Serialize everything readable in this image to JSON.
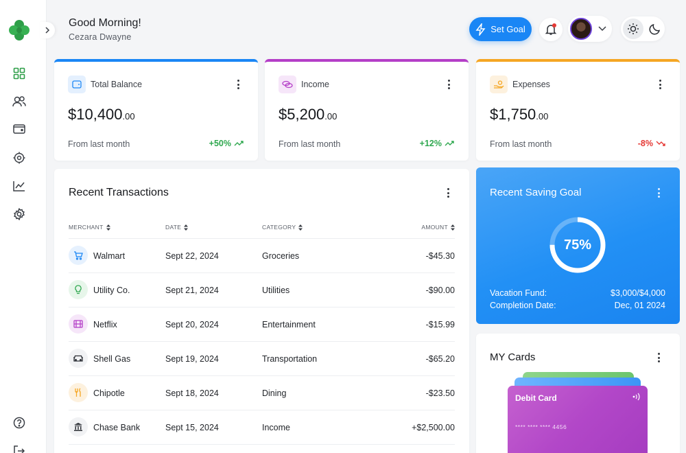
{
  "header": {
    "greeting": "Good Morning!",
    "username": "Cezara Dwayne",
    "set_goal_label": "Set Goal"
  },
  "sidebar": {
    "items": [
      {
        "icon": "dashboard-icon"
      },
      {
        "icon": "users-icon"
      },
      {
        "icon": "wallet-icon"
      },
      {
        "icon": "target-icon"
      },
      {
        "icon": "analytics-icon"
      },
      {
        "icon": "settings-icon"
      }
    ],
    "bottom": [
      {
        "icon": "help-icon"
      },
      {
        "icon": "logout-icon"
      }
    ]
  },
  "stats": [
    {
      "title": "Total Balance",
      "amount": "$10,400",
      "cents": ".00",
      "sub": "From last month",
      "change": "+50%",
      "trend": "up",
      "accent": "#1a86f5"
    },
    {
      "title": "Income",
      "amount": "$5,200",
      "cents": ".00",
      "sub": "From last month",
      "change": "+12%",
      "trend": "up",
      "accent": "#b43ec7"
    },
    {
      "title": "Expenses",
      "amount": "$1,750",
      "cents": ".00",
      "sub": "From last month",
      "change": "-8%",
      "trend": "down",
      "accent": "#f5a623"
    }
  ],
  "transactions": {
    "title": "Recent Transactions",
    "columns": [
      "MERCHANT",
      "DATE",
      "CATEGORY",
      "AMOUNT"
    ],
    "rows": [
      {
        "merchant": "Walmart",
        "date": "Sept 22, 2024",
        "category": "Groceries",
        "amount": "-$45.30"
      },
      {
        "merchant": "Utility Co.",
        "date": "Sept 21, 2024",
        "category": "Utilities",
        "amount": "-$90.00"
      },
      {
        "merchant": "Netflix",
        "date": "Sept 20, 2024",
        "category": "Entertainment",
        "amount": "-$15.99"
      },
      {
        "merchant": "Shell Gas",
        "date": "Sept 19, 2024",
        "category": "Transportation",
        "amount": "-$65.20"
      },
      {
        "merchant": "Chipotle",
        "date": "Sept 18, 2024",
        "category": "Dining",
        "amount": "-$23.50"
      },
      {
        "merchant": "Chase Bank",
        "date": "Sept 15, 2024",
        "category": "Income",
        "amount": "+$2,500.00"
      }
    ]
  },
  "saving_goal": {
    "title": "Recent Saving Goal",
    "percent_label": "75%",
    "progress": 0.75,
    "fund_label": "Vacation Fund:",
    "fund_value": "$3,000/$4,000",
    "date_label": "Completion Date:",
    "date_value": "Dec, 01 2024"
  },
  "cards": {
    "title": "MY Cards",
    "card_label": "Debit Card",
    "card_number": "**** **** **** 4456"
  }
}
